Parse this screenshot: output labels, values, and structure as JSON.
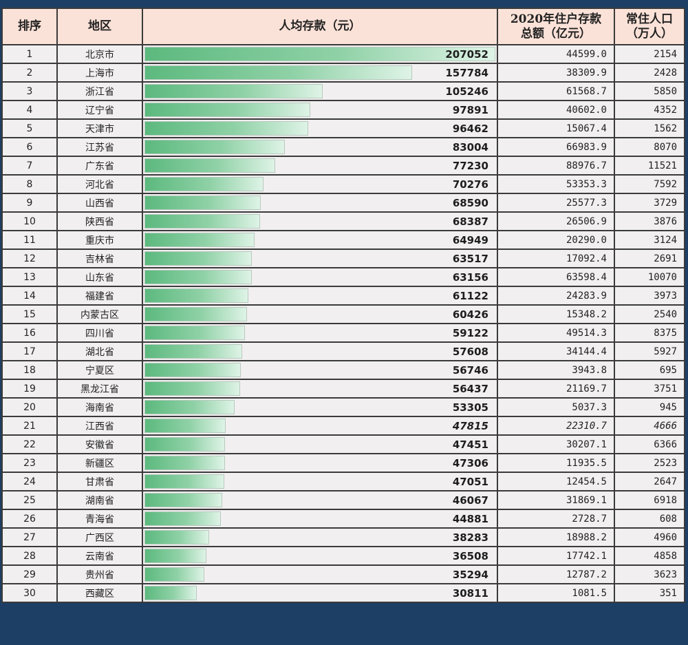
{
  "colors": {
    "frame": "#1d3f66",
    "header_bg": "#fbe2d8",
    "row_bg": "#f1eff0",
    "bar_start": "#5cb97e",
    "bar_end": "#def3e6",
    "grid": "#3a3a3a"
  },
  "table": {
    "headers": {
      "rank": "排序",
      "region": "地区",
      "per_capita": "人均存款（元）",
      "total_line1": "2020年住户存款",
      "total_line2": "总额（亿元）",
      "population_line1": "常住人口",
      "population_line2": "（万人）"
    },
    "max_value": 207052,
    "rows": [
      {
        "rank": "1",
        "region": "北京市",
        "per_capita": "207052",
        "total": "44599.0",
        "population": "2154"
      },
      {
        "rank": "2",
        "region": "上海市",
        "per_capita": "157784",
        "total": "38309.9",
        "population": "2428"
      },
      {
        "rank": "3",
        "region": "浙江省",
        "per_capita": "105246",
        "total": "61568.7",
        "population": "5850"
      },
      {
        "rank": "4",
        "region": "辽宁省",
        "per_capita": "97891",
        "total": "40602.0",
        "population": "4352"
      },
      {
        "rank": "5",
        "region": "天津市",
        "per_capita": "96462",
        "total": "15067.4",
        "population": "1562"
      },
      {
        "rank": "6",
        "region": "江苏省",
        "per_capita": "83004",
        "total": "66983.9",
        "population": "8070"
      },
      {
        "rank": "7",
        "region": "广东省",
        "per_capita": "77230",
        "total": "88976.7",
        "population": "11521"
      },
      {
        "rank": "8",
        "region": "河北省",
        "per_capita": "70276",
        "total": "53353.3",
        "population": "7592"
      },
      {
        "rank": "9",
        "region": "山西省",
        "per_capita": "68590",
        "total": "25577.3",
        "population": "3729"
      },
      {
        "rank": "10",
        "region": "陕西省",
        "per_capita": "68387",
        "total": "26506.9",
        "population": "3876"
      },
      {
        "rank": "11",
        "region": "重庆市",
        "per_capita": "64949",
        "total": "20290.0",
        "population": "3124"
      },
      {
        "rank": "12",
        "region": "吉林省",
        "per_capita": "63517",
        "total": "17092.4",
        "population": "2691"
      },
      {
        "rank": "13",
        "region": "山东省",
        "per_capita": "63156",
        "total": "63598.4",
        "population": "10070"
      },
      {
        "rank": "14",
        "region": "福建省",
        "per_capita": "61122",
        "total": "24283.9",
        "population": "3973"
      },
      {
        "rank": "15",
        "region": "内蒙古区",
        "per_capita": "60426",
        "total": "15348.2",
        "population": "2540"
      },
      {
        "rank": "16",
        "region": "四川省",
        "per_capita": "59122",
        "total": "49514.3",
        "population": "8375"
      },
      {
        "rank": "17",
        "region": "湖北省",
        "per_capita": "57608",
        "total": "34144.4",
        "population": "5927"
      },
      {
        "rank": "18",
        "region": "宁夏区",
        "per_capita": "56746",
        "total": "3943.8",
        "population": "695"
      },
      {
        "rank": "19",
        "region": "黑龙江省",
        "per_capita": "56437",
        "total": "21169.7",
        "population": "3751"
      },
      {
        "rank": "20",
        "region": "海南省",
        "per_capita": "53305",
        "total": "5037.3",
        "population": "945"
      },
      {
        "rank": "21",
        "region": "江西省",
        "per_capita": "47815",
        "total": "22310.7",
        "population": "4666",
        "italic": true
      },
      {
        "rank": "22",
        "region": "安徽省",
        "per_capita": "47451",
        "total": "30207.1",
        "population": "6366"
      },
      {
        "rank": "23",
        "region": "新疆区",
        "per_capita": "47306",
        "total": "11935.5",
        "population": "2523"
      },
      {
        "rank": "24",
        "region": "甘肃省",
        "per_capita": "47051",
        "total": "12454.5",
        "population": "2647"
      },
      {
        "rank": "25",
        "region": "湖南省",
        "per_capita": "46067",
        "total": "31869.1",
        "population": "6918"
      },
      {
        "rank": "26",
        "region": "青海省",
        "per_capita": "44881",
        "total": "2728.7",
        "population": "608"
      },
      {
        "rank": "27",
        "region": "广西区",
        "per_capita": "38283",
        "total": "18988.2",
        "population": "4960"
      },
      {
        "rank": "28",
        "region": "云南省",
        "per_capita": "36508",
        "total": "17742.1",
        "population": "4858"
      },
      {
        "rank": "29",
        "region": "贵州省",
        "per_capita": "35294",
        "total": "12787.2",
        "population": "3623"
      },
      {
        "rank": "30",
        "region": "西藏区",
        "per_capita": "30811",
        "total": "1081.5",
        "population": "351"
      }
    ]
  },
  "chart_data": {
    "type": "bar",
    "orientation": "horizontal",
    "title": "",
    "xlabel": "人均存款（元）",
    "ylabel": "地区",
    "categories": [
      "北京市",
      "上海市",
      "浙江省",
      "辽宁省",
      "天津市",
      "江苏省",
      "广东省",
      "河北省",
      "山西省",
      "陕西省",
      "重庆市",
      "吉林省",
      "山东省",
      "福建省",
      "内蒙古区",
      "四川省",
      "湖北省",
      "宁夏区",
      "黑龙江省",
      "海南省",
      "江西省",
      "安徽省",
      "新疆区",
      "甘肃省",
      "湖南省",
      "青海省",
      "广西区",
      "云南省",
      "贵州省",
      "西藏区"
    ],
    "series": [
      {
        "name": "人均存款（元）",
        "values": [
          207052,
          157784,
          105246,
          97891,
          96462,
          83004,
          77230,
          70276,
          68590,
          68387,
          64949,
          63517,
          63156,
          61122,
          60426,
          59122,
          57608,
          56746,
          56437,
          53305,
          47815,
          47451,
          47306,
          47051,
          46067,
          44881,
          38283,
          36508,
          35294,
          30811
        ]
      },
      {
        "name": "2020年住户存款总额（亿元）",
        "values": [
          44599.0,
          38309.9,
          61568.7,
          40602.0,
          15067.4,
          66983.9,
          88976.7,
          53353.3,
          25577.3,
          26506.9,
          20290.0,
          17092.4,
          63598.4,
          24283.9,
          15348.2,
          49514.3,
          34144.4,
          3943.8,
          21169.7,
          5037.3,
          22310.7,
          30207.1,
          11935.5,
          12454.5,
          31869.1,
          2728.7,
          18988.2,
          17742.1,
          12787.2,
          1081.5
        ]
      },
      {
        "name": "常住人口（万人）",
        "values": [
          2154,
          2428,
          5850,
          4352,
          1562,
          8070,
          11521,
          7592,
          3729,
          3876,
          3124,
          2691,
          10070,
          3973,
          2540,
          8375,
          5927,
          695,
          3751,
          945,
          4666,
          6366,
          2523,
          2647,
          6918,
          608,
          4960,
          4858,
          3623,
          351
        ]
      }
    ],
    "xlim": [
      0,
      207052
    ],
    "grid": true,
    "legend": "none",
    "data_bars_in_table": true
  }
}
